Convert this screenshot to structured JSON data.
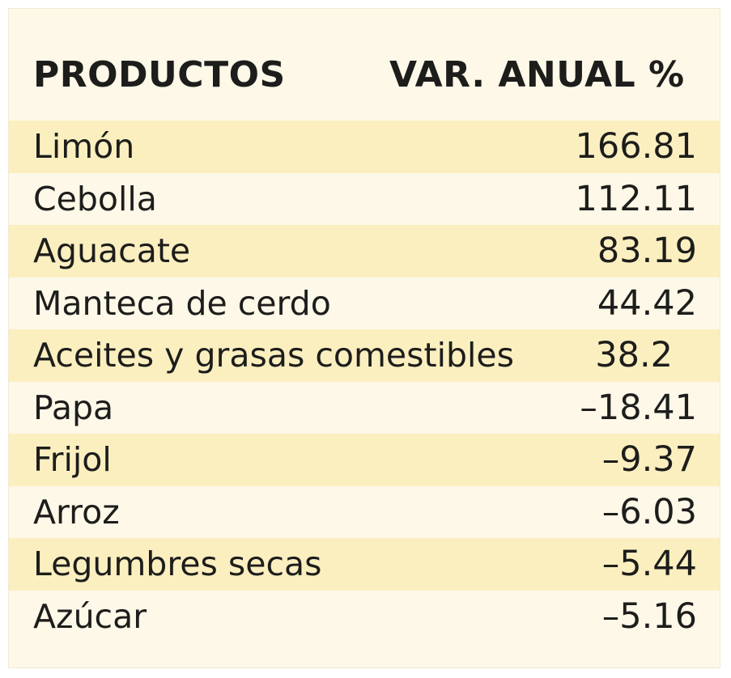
{
  "chart_data": {
    "type": "table",
    "columns": [
      "PRODUCTOS",
      "VAR. ANUAL %"
    ],
    "rows": [
      {
        "product": "Limón",
        "value": "166.81"
      },
      {
        "product": "Cebolla",
        "value": "112.11"
      },
      {
        "product": "Aguacate",
        "value": "83.19"
      },
      {
        "product": "Manteca de cerdo",
        "value": "44.42"
      },
      {
        "product": "Aceites y grasas comestibles",
        "value": "38.2"
      },
      {
        "product": "Papa",
        "value": "–18.41"
      },
      {
        "product": "Frijol",
        "value": "–9.37"
      },
      {
        "product": "Arroz",
        "value": "–6.03"
      },
      {
        "product": "Legumbres secas",
        "value": "–5.44"
      },
      {
        "product": "Azúcar",
        "value": "–5.16"
      }
    ]
  },
  "colors": {
    "background": "#fdf8e8",
    "row_shade": "#fbefc0",
    "text": "#1d1d1b"
  }
}
